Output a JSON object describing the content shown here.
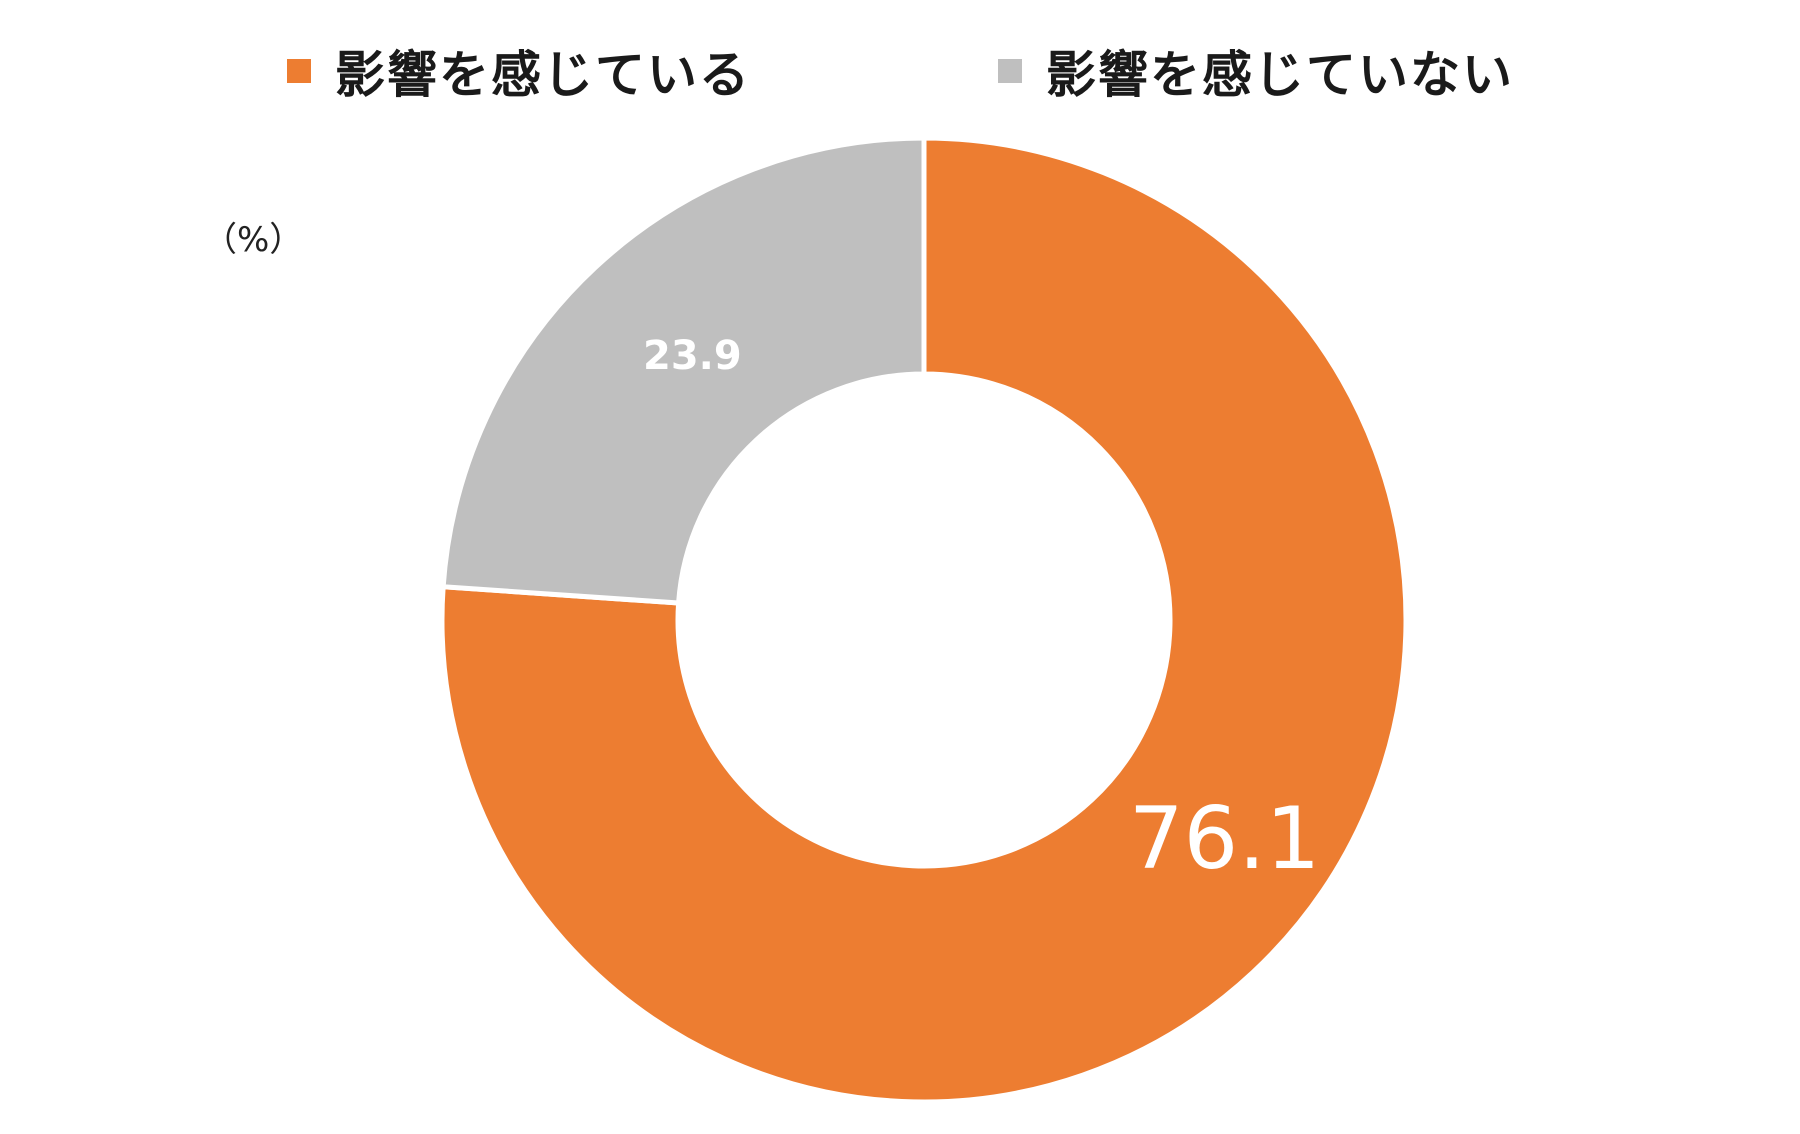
{
  "legend": {
    "items": [
      {
        "label": "影響を感じている",
        "color": "#ED7D31"
      },
      {
        "label": "影響を感じていない",
        "color": "#BFBFBF"
      }
    ]
  },
  "unit_label": "（%）",
  "chart_data": {
    "type": "pie",
    "donut": true,
    "unit": "%",
    "legend_position": "top",
    "categories": [
      "影響を感じている",
      "影響を感じていない"
    ],
    "values": [
      76.1,
      23.9
    ],
    "data_labels": [
      "76.1",
      "23.9"
    ],
    "colors": [
      "#ED7D31",
      "#BFBFBF"
    ]
  }
}
